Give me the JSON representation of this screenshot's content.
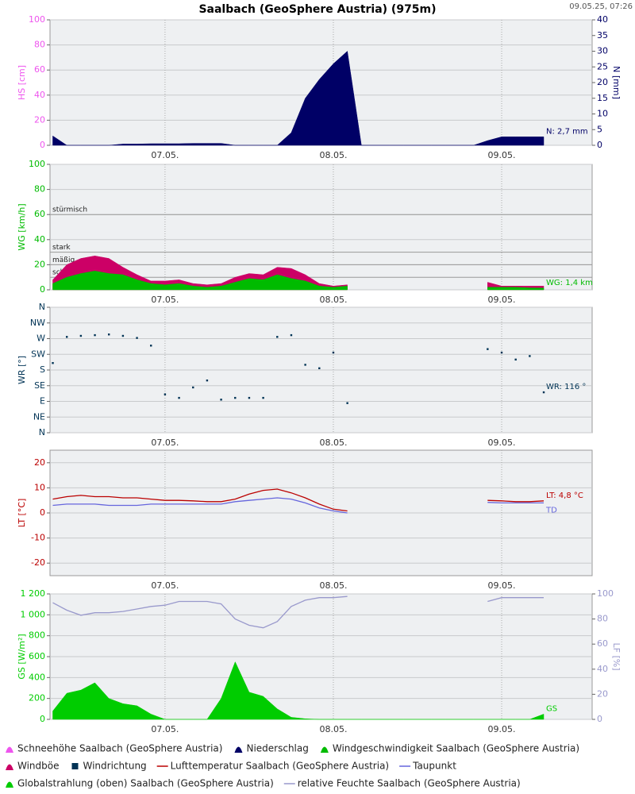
{
  "header": {
    "title": "Saalbach (GeoSphere Austria) (975m)",
    "timestamp": "09.05.25, 07:26"
  },
  "chart_data": [
    {
      "type": "area",
      "ylabel": "HS [cm]",
      "y2label": "N [mm]",
      "grid": true,
      "xlim": [
        -16.4,
        60.9
      ],
      "xticks": [
        {
          "value": 0,
          "label": "07.05."
        },
        {
          "value": 24,
          "label": "08.05."
        },
        {
          "value": 48,
          "label": "09.05."
        }
      ],
      "x": [
        -16,
        -14,
        -12,
        -10,
        -8,
        -6,
        -4,
        -2,
        0,
        2,
        4,
        6,
        8,
        10,
        12,
        14,
        16,
        18,
        20,
        22,
        24,
        26,
        28,
        30,
        32,
        34,
        36,
        38,
        40,
        42,
        44,
        46,
        48,
        50,
        52,
        54
      ],
      "ylim": [
        0,
        100
      ],
      "yticks": [
        0,
        20,
        40,
        60,
        80,
        100
      ],
      "y2lim": [
        0,
        40
      ],
      "y2ticks": [
        0,
        5,
        10,
        15,
        20,
        25,
        30,
        35,
        40
      ],
      "series": [
        {
          "name": "Schneehöhe Saalbach (GeoSphere Austria)",
          "color": "#ee55ee",
          "values": [
            null,
            null,
            null,
            null,
            null,
            null,
            null,
            null,
            null,
            null,
            null,
            null,
            null,
            null,
            null,
            null,
            null,
            null,
            null,
            null,
            null,
            null,
            null,
            null,
            null,
            null,
            null,
            null,
            null,
            null,
            null,
            null,
            null,
            null,
            null,
            null
          ]
        },
        {
          "name": "Niederschlag",
          "color": "#000066",
          "axis": "y2",
          "end_label": "N: 2,7 mm",
          "values": [
            3,
            0,
            0,
            0,
            0,
            0.4,
            0.4,
            0.5,
            0.5,
            0.5,
            0.6,
            0.6,
            0.6,
            0,
            0,
            0,
            0,
            4,
            15,
            21,
            26,
            30,
            0,
            0,
            0,
            0,
            0,
            0,
            0,
            0,
            0,
            1.5,
            2.7,
            2.7,
            2.7,
            2.7
          ]
        }
      ]
    },
    {
      "type": "area",
      "ylabel": "WG [km/h]",
      "grid": true,
      "xlim": [
        -16.4,
        60.9
      ],
      "xticks": [
        {
          "value": 0,
          "label": "07.05."
        },
        {
          "value": 24,
          "label": "08.05."
        },
        {
          "value": 48,
          "label": "09.05."
        }
      ],
      "x": [
        -16,
        -14,
        -12,
        -10,
        -8,
        -6,
        -4,
        -2,
        0,
        2,
        4,
        6,
        8,
        10,
        12,
        14,
        16,
        18,
        20,
        22,
        24,
        26,
        28,
        30,
        32,
        34,
        36,
        38,
        40,
        42,
        44,
        46,
        48,
        50,
        52,
        54
      ],
      "ylim": [
        0,
        100
      ],
      "yticks": [
        0,
        20,
        40,
        60,
        80,
        100
      ],
      "thresholds": [
        {
          "label": "stürmisch",
          "value": 60
        },
        {
          "label": "stark",
          "value": 30
        },
        {
          "label": "mäßig",
          "value": 20
        },
        {
          "label": "schwach",
          "value": 10
        }
      ],
      "series": [
        {
          "name": "Windgeschwindigkeit Saalbach (GeoSphere Austria)",
          "color": "#00bb00",
          "end_label": "WG: 1,4 km",
          "values": [
            5,
            10,
            13,
            15,
            13,
            12,
            8,
            5,
            4,
            5,
            3,
            2,
            3,
            6,
            9,
            8,
            12,
            9,
            7,
            3,
            2,
            3,
            null,
            null,
            null,
            null,
            null,
            null,
            null,
            null,
            null,
            2,
            2,
            2,
            1.5,
            1.4
          ]
        },
        {
          "name": "Windböe",
          "color": "#cc0066",
          "values": [
            8,
            20,
            25,
            27,
            25,
            18,
            12,
            7,
            7,
            8,
            5,
            4,
            5,
            10,
            13,
            12,
            18,
            17,
            12,
            5,
            3,
            4,
            null,
            null,
            null,
            null,
            null,
            null,
            null,
            null,
            null,
            6,
            3,
            3,
            3,
            3
          ]
        }
      ]
    },
    {
      "type": "scatter",
      "ylabel": "WR [°]",
      "grid": true,
      "xlim": [
        -16.4,
        60.9
      ],
      "xticks": [
        {
          "value": 0,
          "label": "07.05."
        },
        {
          "value": 24,
          "label": "08.05."
        },
        {
          "value": 48,
          "label": "09.05."
        }
      ],
      "x": [
        -16,
        -14,
        -12,
        -10,
        -8,
        -6,
        -4,
        -2,
        0,
        2,
        4,
        6,
        8,
        10,
        12,
        14,
        16,
        18,
        20,
        22,
        24,
        26,
        28,
        30,
        32,
        34,
        36,
        38,
        40,
        42,
        44,
        46,
        48,
        50,
        52,
        54
      ],
      "ylim": [
        0,
        360
      ],
      "yticks": [
        {
          "value": 0,
          "label": "N"
        },
        {
          "value": 45,
          "label": "NE"
        },
        {
          "value": 90,
          "label": "E"
        },
        {
          "value": 135,
          "label": "SE"
        },
        {
          "value": 180,
          "label": "S"
        },
        {
          "value": 225,
          "label": "SW"
        },
        {
          "value": 270,
          "label": "W"
        },
        {
          "value": 315,
          "label": "NW"
        },
        {
          "value": 360,
          "label": "N"
        }
      ],
      "series": [
        {
          "name": "Windrichtung",
          "color": "#003355",
          "end_label": "WR: 116 °",
          "values": [
            200,
            275,
            278,
            280,
            282,
            278,
            272,
            250,
            110,
            100,
            130,
            150,
            95,
            100,
            100,
            100,
            275,
            280,
            195,
            185,
            230,
            85,
            null,
            null,
            null,
            null,
            null,
            null,
            null,
            null,
            null,
            240,
            230,
            210,
            220,
            116
          ]
        }
      ]
    },
    {
      "type": "line",
      "ylabel": "LT [°C]",
      "grid": true,
      "xlim": [
        -16.4,
        60.9
      ],
      "xticks": [
        {
          "value": 0,
          "label": "07.05."
        },
        {
          "value": 24,
          "label": "08.05."
        },
        {
          "value": 48,
          "label": "09.05."
        }
      ],
      "x": [
        -16,
        -14,
        -12,
        -10,
        -8,
        -6,
        -4,
        -2,
        0,
        2,
        4,
        6,
        8,
        10,
        12,
        14,
        16,
        18,
        20,
        22,
        24,
        26,
        28,
        30,
        32,
        34,
        36,
        38,
        40,
        42,
        44,
        46,
        48,
        50,
        52,
        54
      ],
      "ylim": [
        -25,
        25
      ],
      "yticks": [
        -20,
        -10,
        0,
        10,
        20
      ],
      "series": [
        {
          "name": "Lufttemperatur Saalbach (GeoSphere Austria)",
          "color": "#bb0000",
          "end_label": "LT: 4,8 °C",
          "values": [
            5.5,
            6.5,
            7,
            6.5,
            6.5,
            6,
            6,
            5.5,
            5,
            5,
            4.8,
            4.5,
            4.5,
            5.5,
            7.5,
            9,
            9.5,
            8,
            6,
            3.5,
            1.5,
            0.8,
            null,
            null,
            null,
            null,
            null,
            null,
            null,
            null,
            null,
            5,
            4.8,
            4.5,
            4.5,
            4.8
          ]
        },
        {
          "name": "Taupunkt",
          "color": "#6666dd",
          "end_label": "TD",
          "values": [
            3,
            3.5,
            3.5,
            3.5,
            3,
            3,
            3,
            3.5,
            3.5,
            3.5,
            3.5,
            3.5,
            3.5,
            4.5,
            5,
            5.5,
            6,
            5.5,
            4,
            2,
            0.8,
            0,
            null,
            null,
            null,
            null,
            null,
            null,
            null,
            null,
            null,
            4.2,
            4,
            4,
            4,
            4
          ]
        }
      ]
    },
    {
      "type": "area",
      "ylabel": "GS [W/m²]",
      "y2label": "LF [%]",
      "grid": true,
      "xlim": [
        -16.4,
        60.9
      ],
      "xticks": [
        {
          "value": 0,
          "label": "07.05."
        },
        {
          "value": 24,
          "label": "08.05."
        },
        {
          "value": 48,
          "label": "09.05."
        }
      ],
      "x": [
        -16,
        -14,
        -12,
        -10,
        -8,
        -6,
        -4,
        -2,
        0,
        2,
        4,
        6,
        8,
        10,
        12,
        14,
        16,
        18,
        20,
        22,
        24,
        26,
        28,
        30,
        32,
        34,
        36,
        38,
        40,
        42,
        44,
        46,
        48,
        50,
        52,
        54
      ],
      "ylim": [
        0,
        1200
      ],
      "yticks": [
        0,
        200,
        400,
        600,
        800,
        {
          "value": 1000,
          "label": "1 000"
        },
        {
          "value": 1200,
          "label": "1 200"
        }
      ],
      "y2lim": [
        0,
        100
      ],
      "y2ticks": [
        0,
        20,
        40,
        60,
        80,
        100
      ],
      "series": [
        {
          "name": "Globalstrahlung (oben) Saalbach (GeoSphere Austria)",
          "color": "#00cc00",
          "end_label": "GS",
          "values": [
            80,
            250,
            280,
            350,
            200,
            150,
            130,
            50,
            0,
            0,
            0,
            0,
            200,
            550,
            260,
            220,
            100,
            20,
            5,
            0,
            0,
            0,
            0,
            0,
            0,
            0,
            0,
            0,
            0,
            0,
            0,
            0,
            0,
            0,
            0,
            50
          ]
        },
        {
          "name": "relative Feuchte Saalbach (GeoSphere Austria)",
          "color": "#9999cc",
          "axis": "y2",
          "kind": "line",
          "values": [
            93,
            87,
            83,
            85,
            85,
            86,
            88,
            90,
            91,
            94,
            94,
            94,
            92,
            80,
            75,
            73,
            78,
            90,
            95,
            97,
            97,
            98,
            null,
            null,
            null,
            null,
            null,
            null,
            null,
            null,
            null,
            94,
            97,
            97,
            97,
            97
          ]
        }
      ]
    }
  ]
}
